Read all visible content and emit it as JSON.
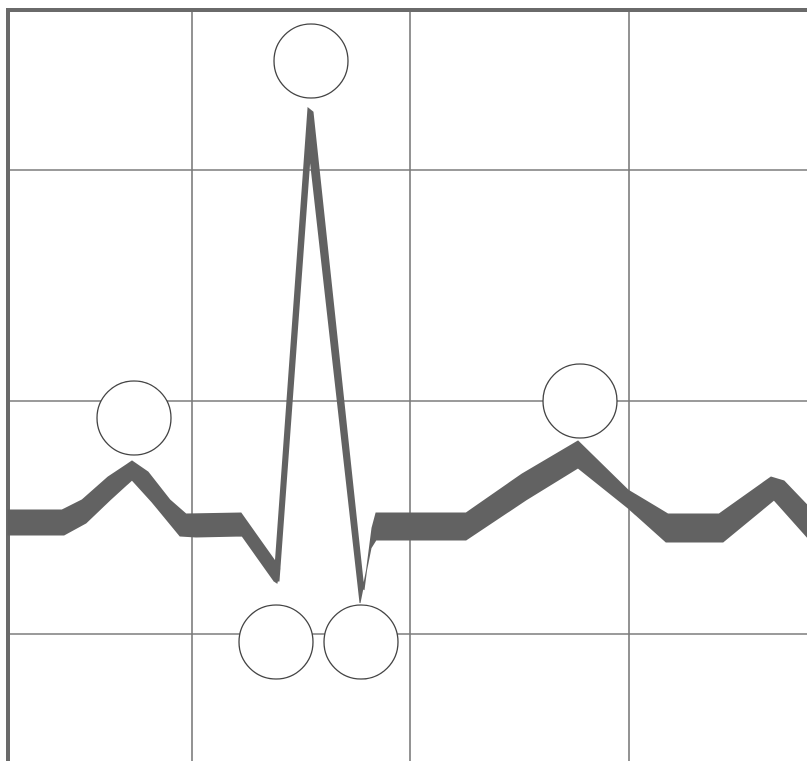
{
  "diagram": {
    "kind": "ecg-waveform",
    "colors": {
      "trace": "#626262",
      "grid": "#7a7a7a",
      "frame": "#6a6a6a",
      "circle_stroke": "#444444"
    },
    "waves": [
      {
        "id": "p-wave",
        "label": ""
      },
      {
        "id": "r-wave",
        "label": ""
      },
      {
        "id": "q-wave",
        "label": ""
      },
      {
        "id": "s-wave",
        "label": ""
      },
      {
        "id": "t-wave",
        "label": ""
      }
    ]
  }
}
